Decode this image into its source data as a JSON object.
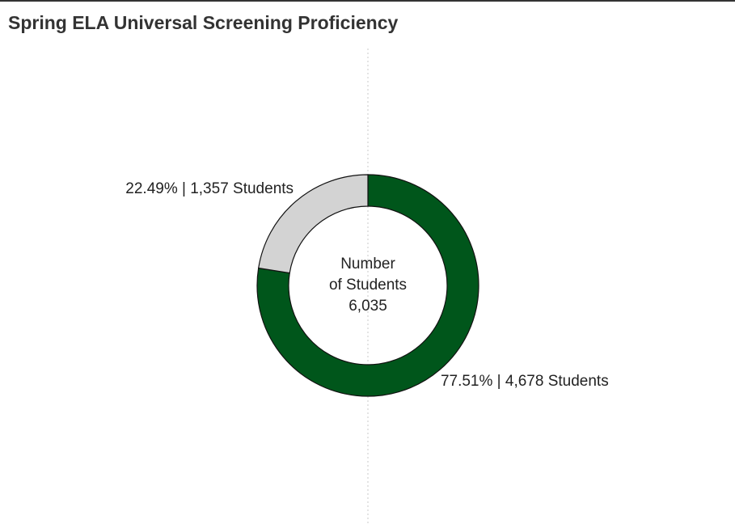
{
  "chart_data": {
    "type": "donut",
    "title": "Spring ELA Universal Screening Proficiency",
    "values": [
      77.51,
      22.49
    ],
    "value_labels": [
      "77.51% | 4,678 Students",
      "22.49% | 1,357 Students"
    ],
    "colors": [
      "#00561b",
      "#d3d3d3"
    ],
    "center_text": [
      "Number",
      "of Students",
      "6,035"
    ]
  }
}
